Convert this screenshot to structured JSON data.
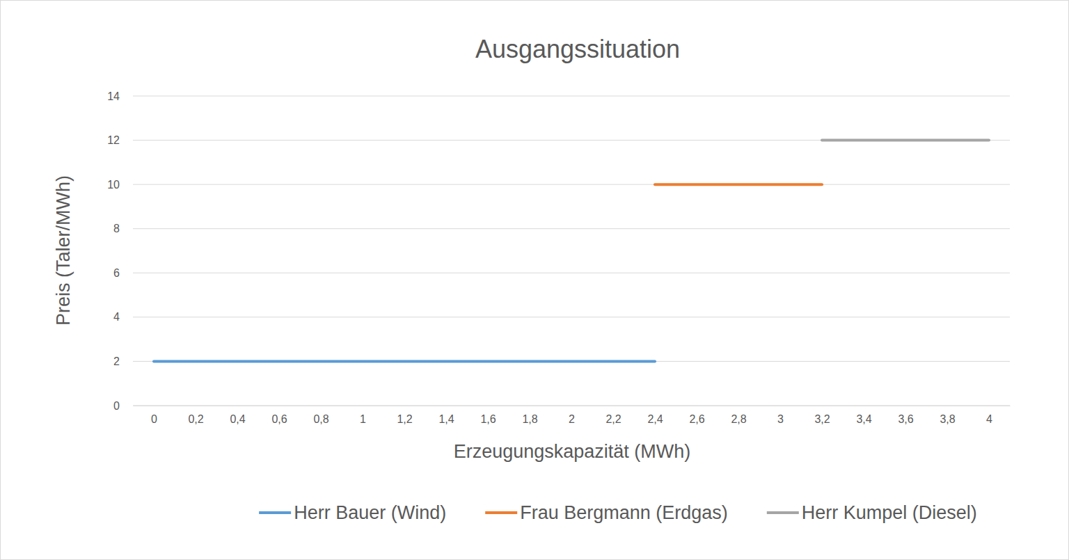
{
  "chart_data": {
    "type": "line",
    "title": "Ausgangssituation",
    "x_label": "Erzeugungskapazität (MWh)",
    "y_label": "Preis (Taler/MWh)",
    "xlim": [
      -0.1,
      4.1
    ],
    "xticks": [
      0,
      {
        "value": 0.2,
        "label": "0,2"
      },
      {
        "value": 0.4,
        "label": "0,4"
      },
      {
        "value": 0.6,
        "label": "0,6"
      },
      {
        "value": 0.8,
        "label": "0,8"
      },
      1,
      {
        "value": 1.2,
        "label": "1,2"
      },
      {
        "value": 1.4,
        "label": "1,4"
      },
      {
        "value": 1.6,
        "label": "1,6"
      },
      {
        "value": 1.8,
        "label": "1,8"
      },
      2,
      {
        "value": 2.2,
        "label": "2,2"
      },
      {
        "value": 2.4,
        "label": "2,4"
      },
      {
        "value": 2.6,
        "label": "2,6"
      },
      {
        "value": 2.8,
        "label": "2,8"
      },
      3,
      {
        "value": 3.2,
        "label": "3,2"
      },
      {
        "value": 3.4,
        "label": "3,4"
      },
      {
        "value": 3.6,
        "label": "3,6"
      },
      {
        "value": 3.8,
        "label": "3,8"
      },
      4
    ],
    "ylim": [
      0,
      14
    ],
    "yticks": [
      0,
      2,
      4,
      6,
      8,
      10,
      12,
      14
    ],
    "grid": true,
    "legend": "bottom",
    "series": [
      {
        "name": "Herr Bauer (Wind)",
        "color": "#5b9bd5",
        "x": [
          0,
          2.4
        ],
        "values": [
          2,
          2
        ]
      },
      {
        "name": "Frau Bergmann (Erdgas)",
        "color": "#ed7d31",
        "x": [
          2.4,
          3.2
        ],
        "values": [
          10,
          10
        ]
      },
      {
        "name": "Herr Kumpel (Diesel)",
        "color": "#a5a5a5",
        "x": [
          3.2,
          4
        ],
        "values": [
          12,
          12
        ]
      }
    ]
  }
}
